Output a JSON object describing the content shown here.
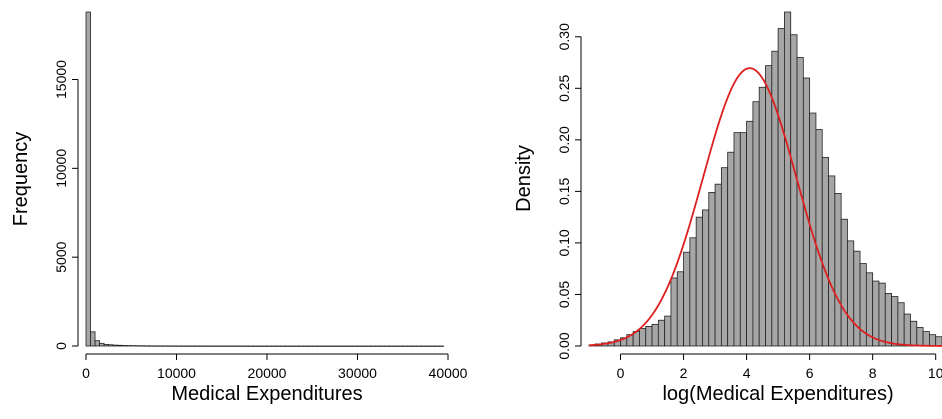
{
  "colors": {
    "bar_fill": "#a6a6a6",
    "bar_stroke": "#222222",
    "curve": "#dd1f1f",
    "axis": "#000000"
  },
  "chart_data": [
    {
      "type": "bar",
      "title": "",
      "xlabel": "Medical Expenditures",
      "ylabel": "Frequency",
      "xlim": [
        0,
        40000
      ],
      "ylim": [
        0,
        18800
      ],
      "xticks": [
        0,
        10000,
        20000,
        30000,
        40000
      ],
      "yticks": [
        0,
        5000,
        10000,
        15000
      ],
      "bin_width": 500,
      "bins_start": 0,
      "values": [
        18800,
        800,
        300,
        150,
        90,
        70,
        50,
        40,
        30,
        25,
        20,
        18,
        15,
        12,
        10,
        9,
        8,
        7,
        6,
        5,
        5,
        4,
        4,
        3,
        3,
        3,
        3,
        2,
        2,
        2,
        2,
        2,
        2,
        2,
        2,
        1,
        1,
        1,
        1,
        1,
        1,
        1,
        1,
        1,
        1,
        1,
        1,
        1,
        1,
        1,
        1,
        1,
        1,
        1,
        1,
        1,
        1,
        1,
        1,
        1,
        1,
        1,
        1,
        1,
        1,
        1,
        1,
        1,
        1,
        1,
        1,
        1,
        1,
        1,
        1,
        1,
        1,
        1,
        1
      ],
      "grid": false
    },
    {
      "type": "bar",
      "title": "",
      "xlabel": "log(Medical Expenditures)",
      "ylabel": "Density",
      "xlim": [
        -1,
        10.2
      ],
      "ylim": [
        0,
        0.325
      ],
      "xticks": [
        0,
        2,
        4,
        6,
        8,
        10
      ],
      "yticks": [
        0.0,
        0.05,
        0.1,
        0.15,
        0.2,
        0.25,
        0.3
      ],
      "bin_width": 0.2,
      "bins_start": -1.0,
      "values": [
        0.001,
        0.002,
        0.003,
        0.004,
        0.006,
        0.008,
        0.011,
        0.014,
        0.017,
        0.019,
        0.021,
        0.025,
        0.029,
        0.066,
        0.072,
        0.091,
        0.105,
        0.125,
        0.132,
        0.149,
        0.157,
        0.173,
        0.188,
        0.207,
        0.207,
        0.218,
        0.237,
        0.251,
        0.272,
        0.286,
        0.308,
        0.324,
        0.302,
        0.28,
        0.26,
        0.226,
        0.21,
        0.183,
        0.165,
        0.148,
        0.123,
        0.102,
        0.092,
        0.08,
        0.071,
        0.063,
        0.061,
        0.051,
        0.048,
        0.042,
        0.031,
        0.024,
        0.018,
        0.014,
        0.011,
        0.009,
        0.007,
        0.005,
        0.003,
        0.002,
        0.001,
        0.0007,
        0.0004
      ],
      "curve": {
        "kind": "normal",
        "mean": 4.1,
        "sd": 1.48
      },
      "grid": false
    }
  ]
}
